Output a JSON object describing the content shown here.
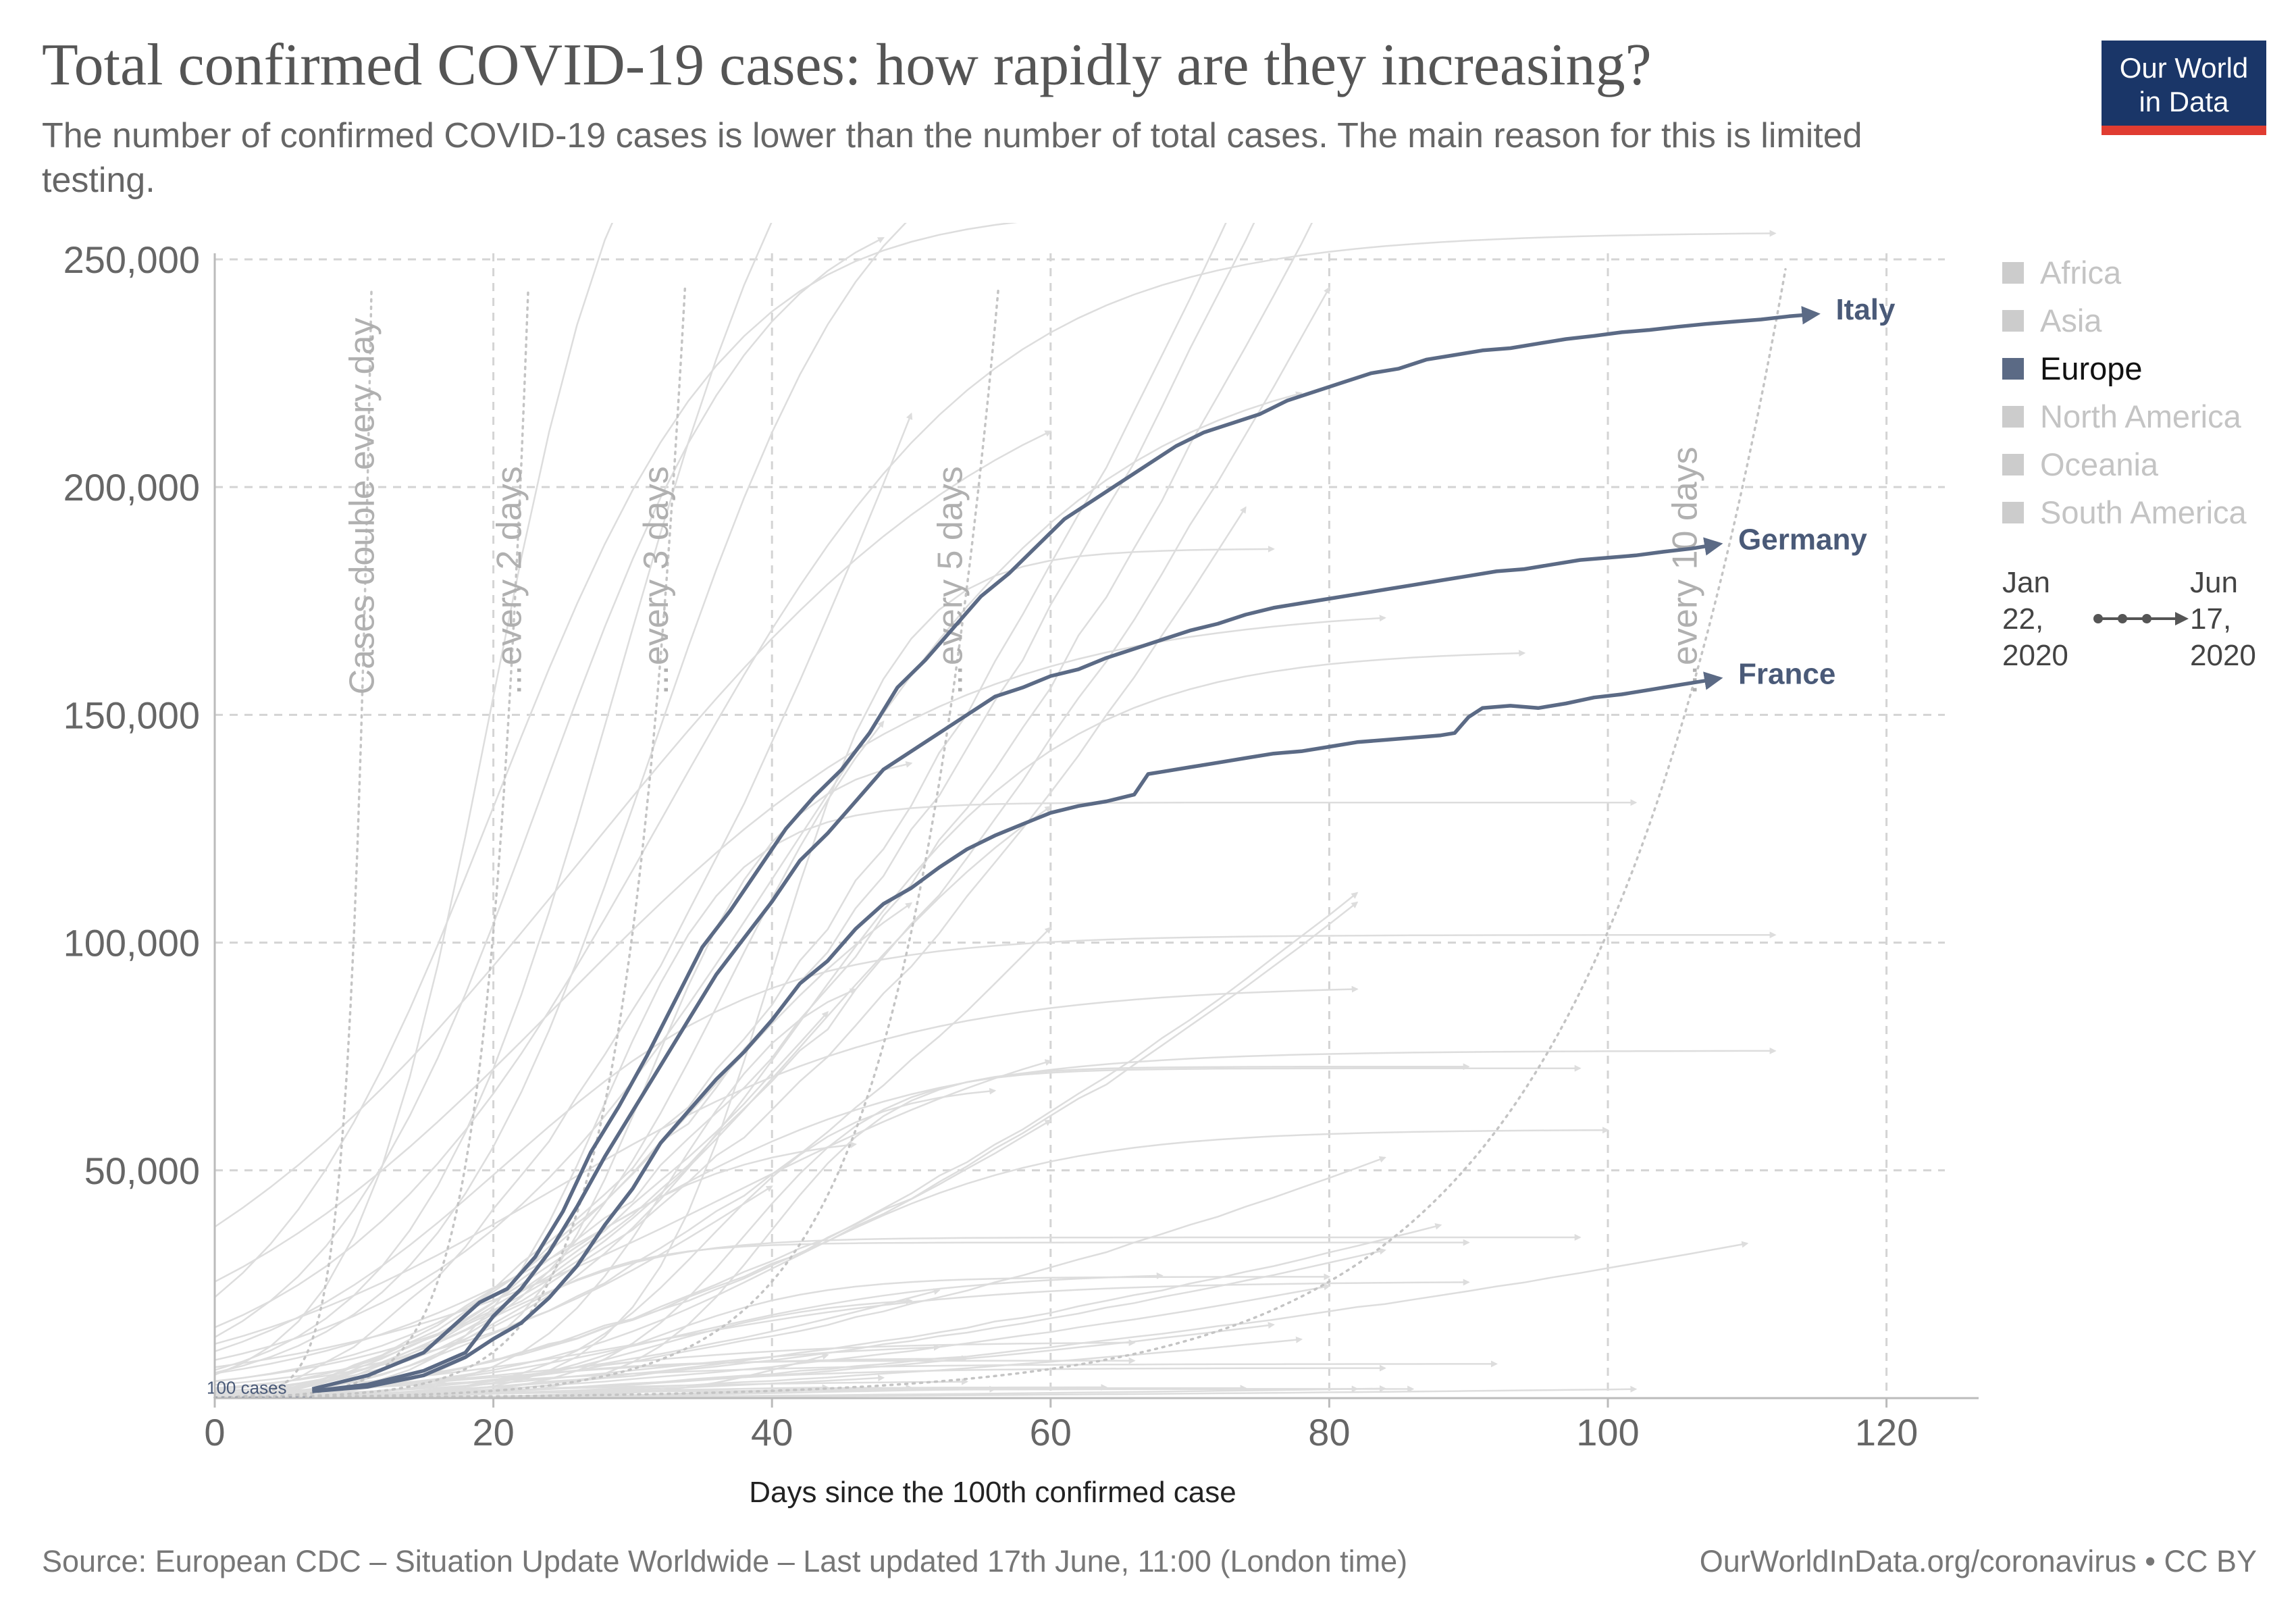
{
  "header": {
    "title": "Total confirmed COVID-19 cases: how rapidly are they increasing?",
    "subtitle": "The number of confirmed COVID-19 cases is lower than the number of total cases. The main reason for this is limited testing.",
    "logo_line1": "Our World",
    "logo_line2": "in Data"
  },
  "legend": {
    "items": [
      {
        "label": "Africa",
        "active": false
      },
      {
        "label": "Asia",
        "active": false
      },
      {
        "label": "Europe",
        "active": true
      },
      {
        "label": "North America",
        "active": false
      },
      {
        "label": "Oceania",
        "active": false
      },
      {
        "label": "South America",
        "active": false
      }
    ]
  },
  "timeline": {
    "start_line1": "Jan",
    "start_line2": "22,",
    "start_line3": "2020",
    "end_line1": "Jun",
    "end_line2": "17,",
    "end_line3": "2020"
  },
  "footer": {
    "source": "Source: European CDC – Situation Update Worldwide – Last updated 17th June, 11:00 (London time)",
    "credit": "OurWorldInData.org/coronavirus • CC BY"
  },
  "colors": {
    "highlight": "#5b6a85",
    "background_line": "#dddddd",
    "reference_line": "#c4c4c4",
    "grid": "#d4d4d4"
  },
  "chart_data": {
    "type": "line",
    "xlabel": "Days since the 100th confirmed case",
    "ylabel": "",
    "xlim": [
      0,
      127
    ],
    "ylim": [
      0,
      258000
    ],
    "x_ticks": [
      0,
      20,
      40,
      60,
      80,
      100,
      120
    ],
    "y_ticks": [
      50000,
      100000,
      150000,
      200000,
      250000
    ],
    "grid": true,
    "start_annotation": "100 cases",
    "reference_lines": [
      {
        "label": "Cases double every day",
        "doubling_days": 1
      },
      {
        "label": "...every 2 days",
        "doubling_days": 2
      },
      {
        "label": "...every 3 days",
        "doubling_days": 3
      },
      {
        "label": "...every 5 days",
        "doubling_days": 5
      },
      {
        "label": "...every 10 days",
        "doubling_days": 10
      }
    ],
    "series": [
      {
        "name": "Italy",
        "highlight": true,
        "x": [
          7,
          11,
          15,
          19,
          21,
          23,
          25,
          27,
          29,
          31,
          33,
          35,
          37,
          39,
          41,
          43,
          45,
          47,
          49,
          51,
          53,
          55,
          57,
          59,
          61,
          63,
          65,
          67,
          69,
          71,
          73,
          75,
          77,
          79,
          81,
          83,
          85,
          87,
          89,
          91,
          93,
          95,
          97,
          99,
          101,
          103,
          105,
          107,
          109,
          111,
          113,
          115
        ],
        "y": [
          2000,
          5000,
          10000,
          21000,
          24000,
          31000,
          41000,
          54000,
          64000,
          75000,
          87000,
          99000,
          107000,
          116000,
          125000,
          132000,
          138000,
          146000,
          156000,
          162000,
          169000,
          176000,
          181000,
          187000,
          193000,
          197000,
          201000,
          205000,
          209000,
          212000,
          214000,
          216000,
          219000,
          221000,
          223000,
          225000,
          226000,
          228000,
          229000,
          230000,
          230500,
          231500,
          232500,
          233200,
          234000,
          234500,
          235200,
          235800,
          236300,
          236800,
          237500,
          238000
        ]
      },
      {
        "name": "Germany",
        "highlight": true,
        "x": [
          7,
          11,
          15,
          18,
          20,
          22,
          24,
          26,
          28,
          30,
          32,
          34,
          36,
          38,
          40,
          42,
          44,
          46,
          48,
          50,
          52,
          54,
          56,
          58,
          60,
          62,
          64,
          66,
          68,
          70,
          72,
          74,
          76,
          78,
          80,
          82,
          84,
          86,
          88,
          90,
          92,
          94,
          96,
          98,
          100,
          102,
          104,
          106,
          108
        ],
        "y": [
          1500,
          3000,
          6000,
          10000,
          18000,
          24000,
          32000,
          42000,
          53000,
          63000,
          73000,
          83000,
          93000,
          101000,
          109000,
          118000,
          124000,
          131000,
          138000,
          142000,
          146000,
          150000,
          154000,
          156000,
          158500,
          160000,
          162500,
          164500,
          166500,
          168500,
          170000,
          172000,
          173500,
          174500,
          175500,
          176500,
          177500,
          178500,
          179500,
          180500,
          181500,
          182000,
          183000,
          184000,
          184500,
          185000,
          185800,
          186500,
          187500
        ]
      },
      {
        "name": "France",
        "highlight": true,
        "x": [
          7,
          11,
          15,
          18,
          20,
          22,
          24,
          26,
          28,
          30,
          32,
          34,
          36,
          38,
          40,
          42,
          44,
          46,
          48,
          50,
          52,
          54,
          56,
          58,
          60,
          62,
          64,
          66,
          67,
          68,
          70,
          72,
          74,
          76,
          78,
          80,
          82,
          84,
          86,
          88,
          89,
          90,
          91,
          93,
          95,
          97,
          99,
          101,
          103,
          105,
          107,
          108
        ],
        "y": [
          1500,
          2500,
          5000,
          9000,
          13000,
          16500,
          22000,
          29000,
          38000,
          46000,
          56000,
          63000,
          70000,
          76000,
          83000,
          91000,
          96000,
          103000,
          108500,
          112000,
          116500,
          120500,
          123500,
          126000,
          128500,
          130000,
          131000,
          132500,
          137000,
          137500,
          138500,
          139500,
          140500,
          141500,
          142000,
          143000,
          144000,
          144500,
          145000,
          145500,
          146000,
          149500,
          151500,
          152000,
          151500,
          152500,
          153800,
          154500,
          155500,
          156500,
          157500,
          158000
        ]
      }
    ]
  }
}
